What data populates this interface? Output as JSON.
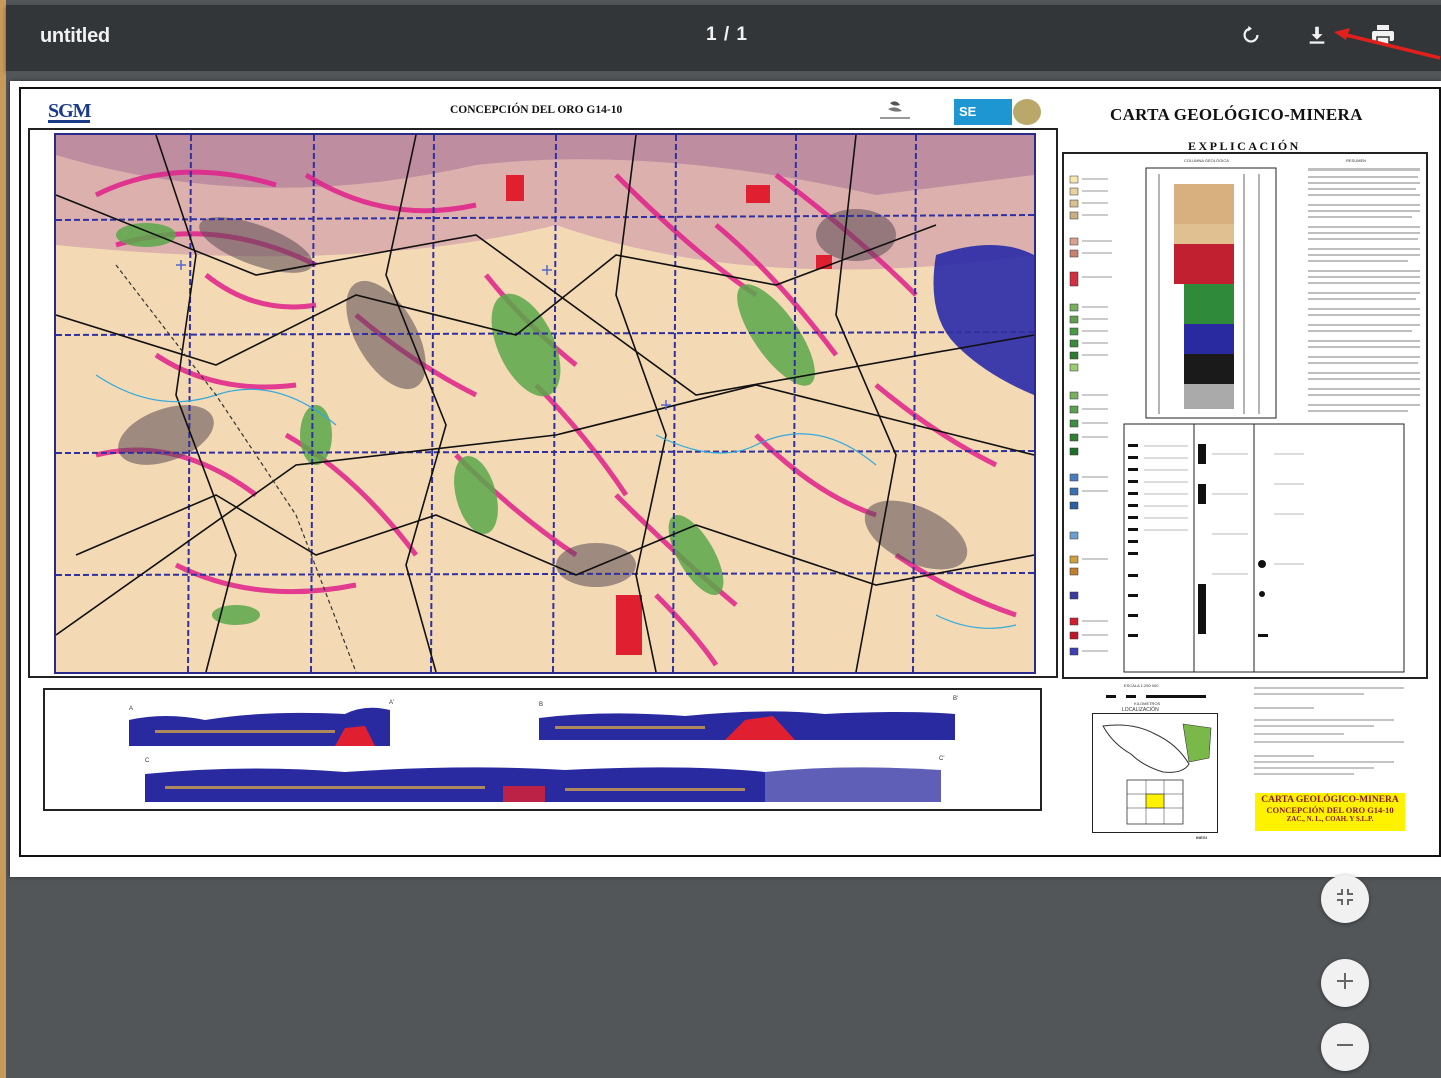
{
  "toolbar": {
    "title": "untitled",
    "page_indicator": "1 / 1",
    "rotate_icon": "rotate-icon",
    "download_icon": "download-icon",
    "print_icon": "print-icon"
  },
  "document": {
    "header_left_logo": "SGM",
    "map_title": "CONCEPCIÓN DEL ORO G14-10",
    "agency_logo": "SE",
    "sheet_title": "CARTA GEOLÓGICO-MINERA",
    "legend_heading": "EXPLICACIÓN",
    "legend_column_heading": "COLUMNA GEOLÓGICA",
    "summary_heading": "RESUMEN",
    "section_labels": [
      "A",
      "A'",
      "B",
      "B'",
      "C",
      "C'"
    ],
    "scale_label": "ESCALA 1:250 000",
    "scale_unit": "KILOMETROS",
    "location_heading": "LOCALIZACIÓN",
    "footer_credit": "INEGI",
    "stamp_line_1": "CARTA GEOLÓGICO-MINERA",
    "stamp_line_2": "CONCEPCIÓN DEL ORO G14-10",
    "stamp_line_3": "ZAC., N. L., COAH. Y S.L.P.",
    "legend_groups": [
      "SIMBOLOGÍA CUATERNARIO",
      "TERCIARIO",
      "PALEÓGENO",
      "CRETÁCICO",
      "JURÁSICO",
      "TRIÁSICO",
      "ROCAS ÍGNEAS INTRUSIVAS"
    ]
  },
  "zoom_controls": {
    "fit_icon": "fit-to-page-icon",
    "zoom_in_icon": "zoom-in-icon",
    "zoom_out_icon": "zoom-out-icon"
  },
  "colors": {
    "toolbar_bg": "#323639",
    "viewer_bg": "#525659",
    "annotation_arrow": "#e0201c",
    "stamp_bg": "#fff200"
  }
}
